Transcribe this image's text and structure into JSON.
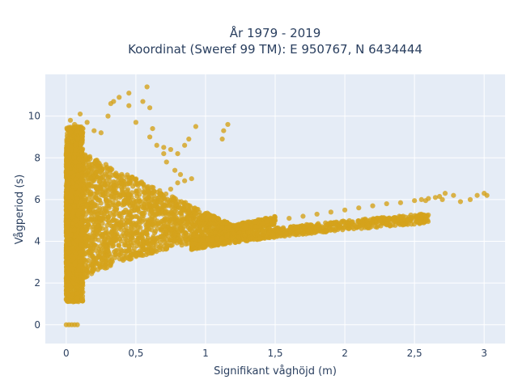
{
  "chart_data": {
    "type": "scatter",
    "title_line1": "År 1979 - 2019",
    "title_line2": "Koordinat (Sweref 99 TM): E 950767, N 6434444",
    "xlabel": "Signifikant våghöjd (m)",
    "ylabel": "Vågperiod (s)",
    "xlim": [
      -0.15,
      3.15
    ],
    "ylim": [
      -0.9,
      12.0
    ],
    "x_ticks": [
      0,
      0.5,
      1,
      1.5,
      2,
      2.5,
      3
    ],
    "x_tick_labels": [
      "0",
      "0,5",
      "1",
      "1,5",
      "2",
      "2,5",
      "3"
    ],
    "y_ticks": [
      0,
      2,
      4,
      6,
      8,
      10
    ],
    "y_tick_labels": [
      "0",
      "2",
      "4",
      "6",
      "8",
      "10"
    ],
    "grid": true,
    "colors": {
      "marker": "#d4a31c",
      "plot_bg": "#e5ecf6",
      "grid": "#ffffff"
    },
    "series": [
      {
        "points": [
          [
            0.0,
            0.0
          ],
          [
            0.02,
            0.0
          ],
          [
            0.04,
            0.0
          ],
          [
            0.06,
            0.0
          ],
          [
            0.08,
            0.0
          ],
          [
            0.0,
            1.2
          ],
          [
            0.02,
            1.4
          ],
          [
            0.05,
            1.1
          ],
          [
            0.08,
            1.3
          ],
          [
            0.03,
            9.8
          ],
          [
            0.06,
            9.6
          ],
          [
            0.1,
            10.1
          ],
          [
            0.12,
            9.4
          ],
          [
            0.15,
            9.7
          ],
          [
            0.2,
            9.3
          ],
          [
            0.25,
            9.2
          ],
          [
            0.3,
            10.0
          ],
          [
            0.32,
            10.6
          ],
          [
            0.34,
            10.7
          ],
          [
            0.38,
            10.9
          ],
          [
            0.45,
            10.5
          ],
          [
            0.45,
            11.1
          ],
          [
            0.5,
            9.7
          ],
          [
            0.55,
            10.7
          ],
          [
            0.58,
            11.4
          ],
          [
            0.6,
            9.0
          ],
          [
            0.6,
            10.4
          ],
          [
            0.62,
            9.4
          ],
          [
            0.65,
            8.6
          ],
          [
            0.7,
            8.5
          ],
          [
            0.7,
            8.2
          ],
          [
            0.75,
            8.4
          ],
          [
            0.8,
            8.2
          ],
          [
            0.85,
            8.6
          ],
          [
            0.88,
            8.9
          ],
          [
            0.93,
            9.5
          ],
          [
            1.13,
            9.3
          ],
          [
            1.12,
            8.9
          ],
          [
            1.16,
            9.6
          ],
          [
            0.72,
            7.8
          ],
          [
            0.78,
            7.4
          ],
          [
            0.82,
            7.2
          ],
          [
            0.75,
            6.5
          ],
          [
            0.8,
            6.8
          ],
          [
            0.85,
            6.9
          ],
          [
            0.9,
            7.0
          ],
          [
            0.8,
            5.0
          ],
          [
            0.88,
            5.4
          ],
          [
            0.6,
            5.7
          ],
          [
            0.65,
            5.3
          ],
          [
            0.7,
            4.9
          ],
          [
            0.82,
            4.6
          ],
          [
            1.5,
            5.0
          ],
          [
            1.6,
            5.1
          ],
          [
            1.7,
            5.2
          ],
          [
            1.8,
            5.3
          ],
          [
            1.9,
            5.4
          ],
          [
            2.0,
            5.5
          ],
          [
            2.1,
            5.6
          ],
          [
            2.2,
            5.7
          ],
          [
            2.3,
            5.8
          ],
          [
            2.4,
            5.85
          ],
          [
            2.5,
            5.95
          ],
          [
            2.55,
            6.0
          ],
          [
            2.6,
            6.05
          ],
          [
            2.65,
            6.1
          ],
          [
            2.7,
            6.0
          ],
          [
            2.72,
            6.3
          ],
          [
            2.78,
            6.2
          ],
          [
            2.83,
            5.9
          ],
          [
            2.9,
            6.0
          ],
          [
            2.95,
            6.2
          ],
          [
            3.0,
            6.3
          ],
          [
            3.02,
            6.2
          ],
          [
            2.58,
            5.95
          ],
          [
            2.68,
            6.15
          ]
        ]
      }
    ]
  }
}
